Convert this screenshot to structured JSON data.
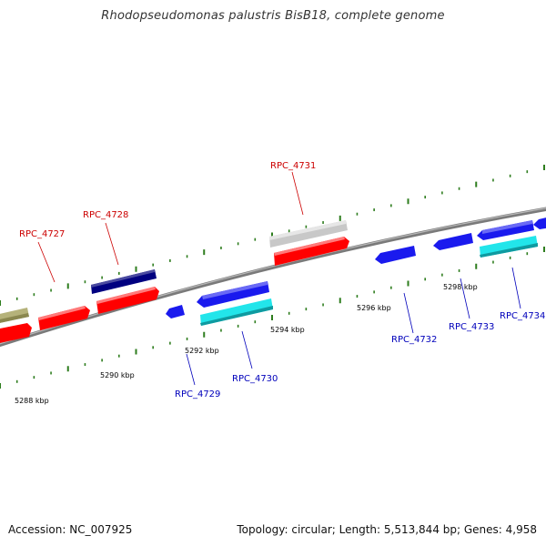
{
  "title": "Rhodopseudomonas palustris BisB18, complete genome",
  "footer": {
    "accession": "Accession: NC_007925",
    "summary": "Topology: circular; Length: 5,513,844 bp; Genes: 4,958"
  },
  "colors": {
    "backbone": "#808080",
    "tick": "#2e7d1e",
    "label_forward": "#cc0000",
    "label_reverse": "#0000bb",
    "cds": "#ff0000",
    "rna": "#000080",
    "pseudo": "#b5b27a",
    "other": "#c8c8c8",
    "cds_rev": "#1a1aee",
    "rna_rev": "#22e5ea"
  },
  "scale_labels": [
    {
      "text": "5288 kbp",
      "kbp": 5288
    },
    {
      "text": "5290 kbp",
      "kbp": 5290
    },
    {
      "text": "5292 kbp",
      "kbp": 5292
    },
    {
      "text": "5294 kbp",
      "kbp": 5294
    },
    {
      "text": "5296 kbp",
      "kbp": 5296
    },
    {
      "text": "5298 kbp",
      "kbp": 5298
    }
  ],
  "gene_labels": [
    {
      "name": "RPC_4727",
      "strand": "forward"
    },
    {
      "name": "RPC_4728",
      "strand": "forward"
    },
    {
      "name": "RPC_4731",
      "strand": "forward"
    },
    {
      "name": "RPC_4729",
      "strand": "reverse"
    },
    {
      "name": "RPC_4730",
      "strand": "reverse"
    },
    {
      "name": "RPC_4732",
      "strand": "reverse"
    },
    {
      "name": "RPC_4733",
      "strand": "reverse"
    },
    {
      "name": "RPC_4734",
      "strand": "reverse"
    }
  ]
}
